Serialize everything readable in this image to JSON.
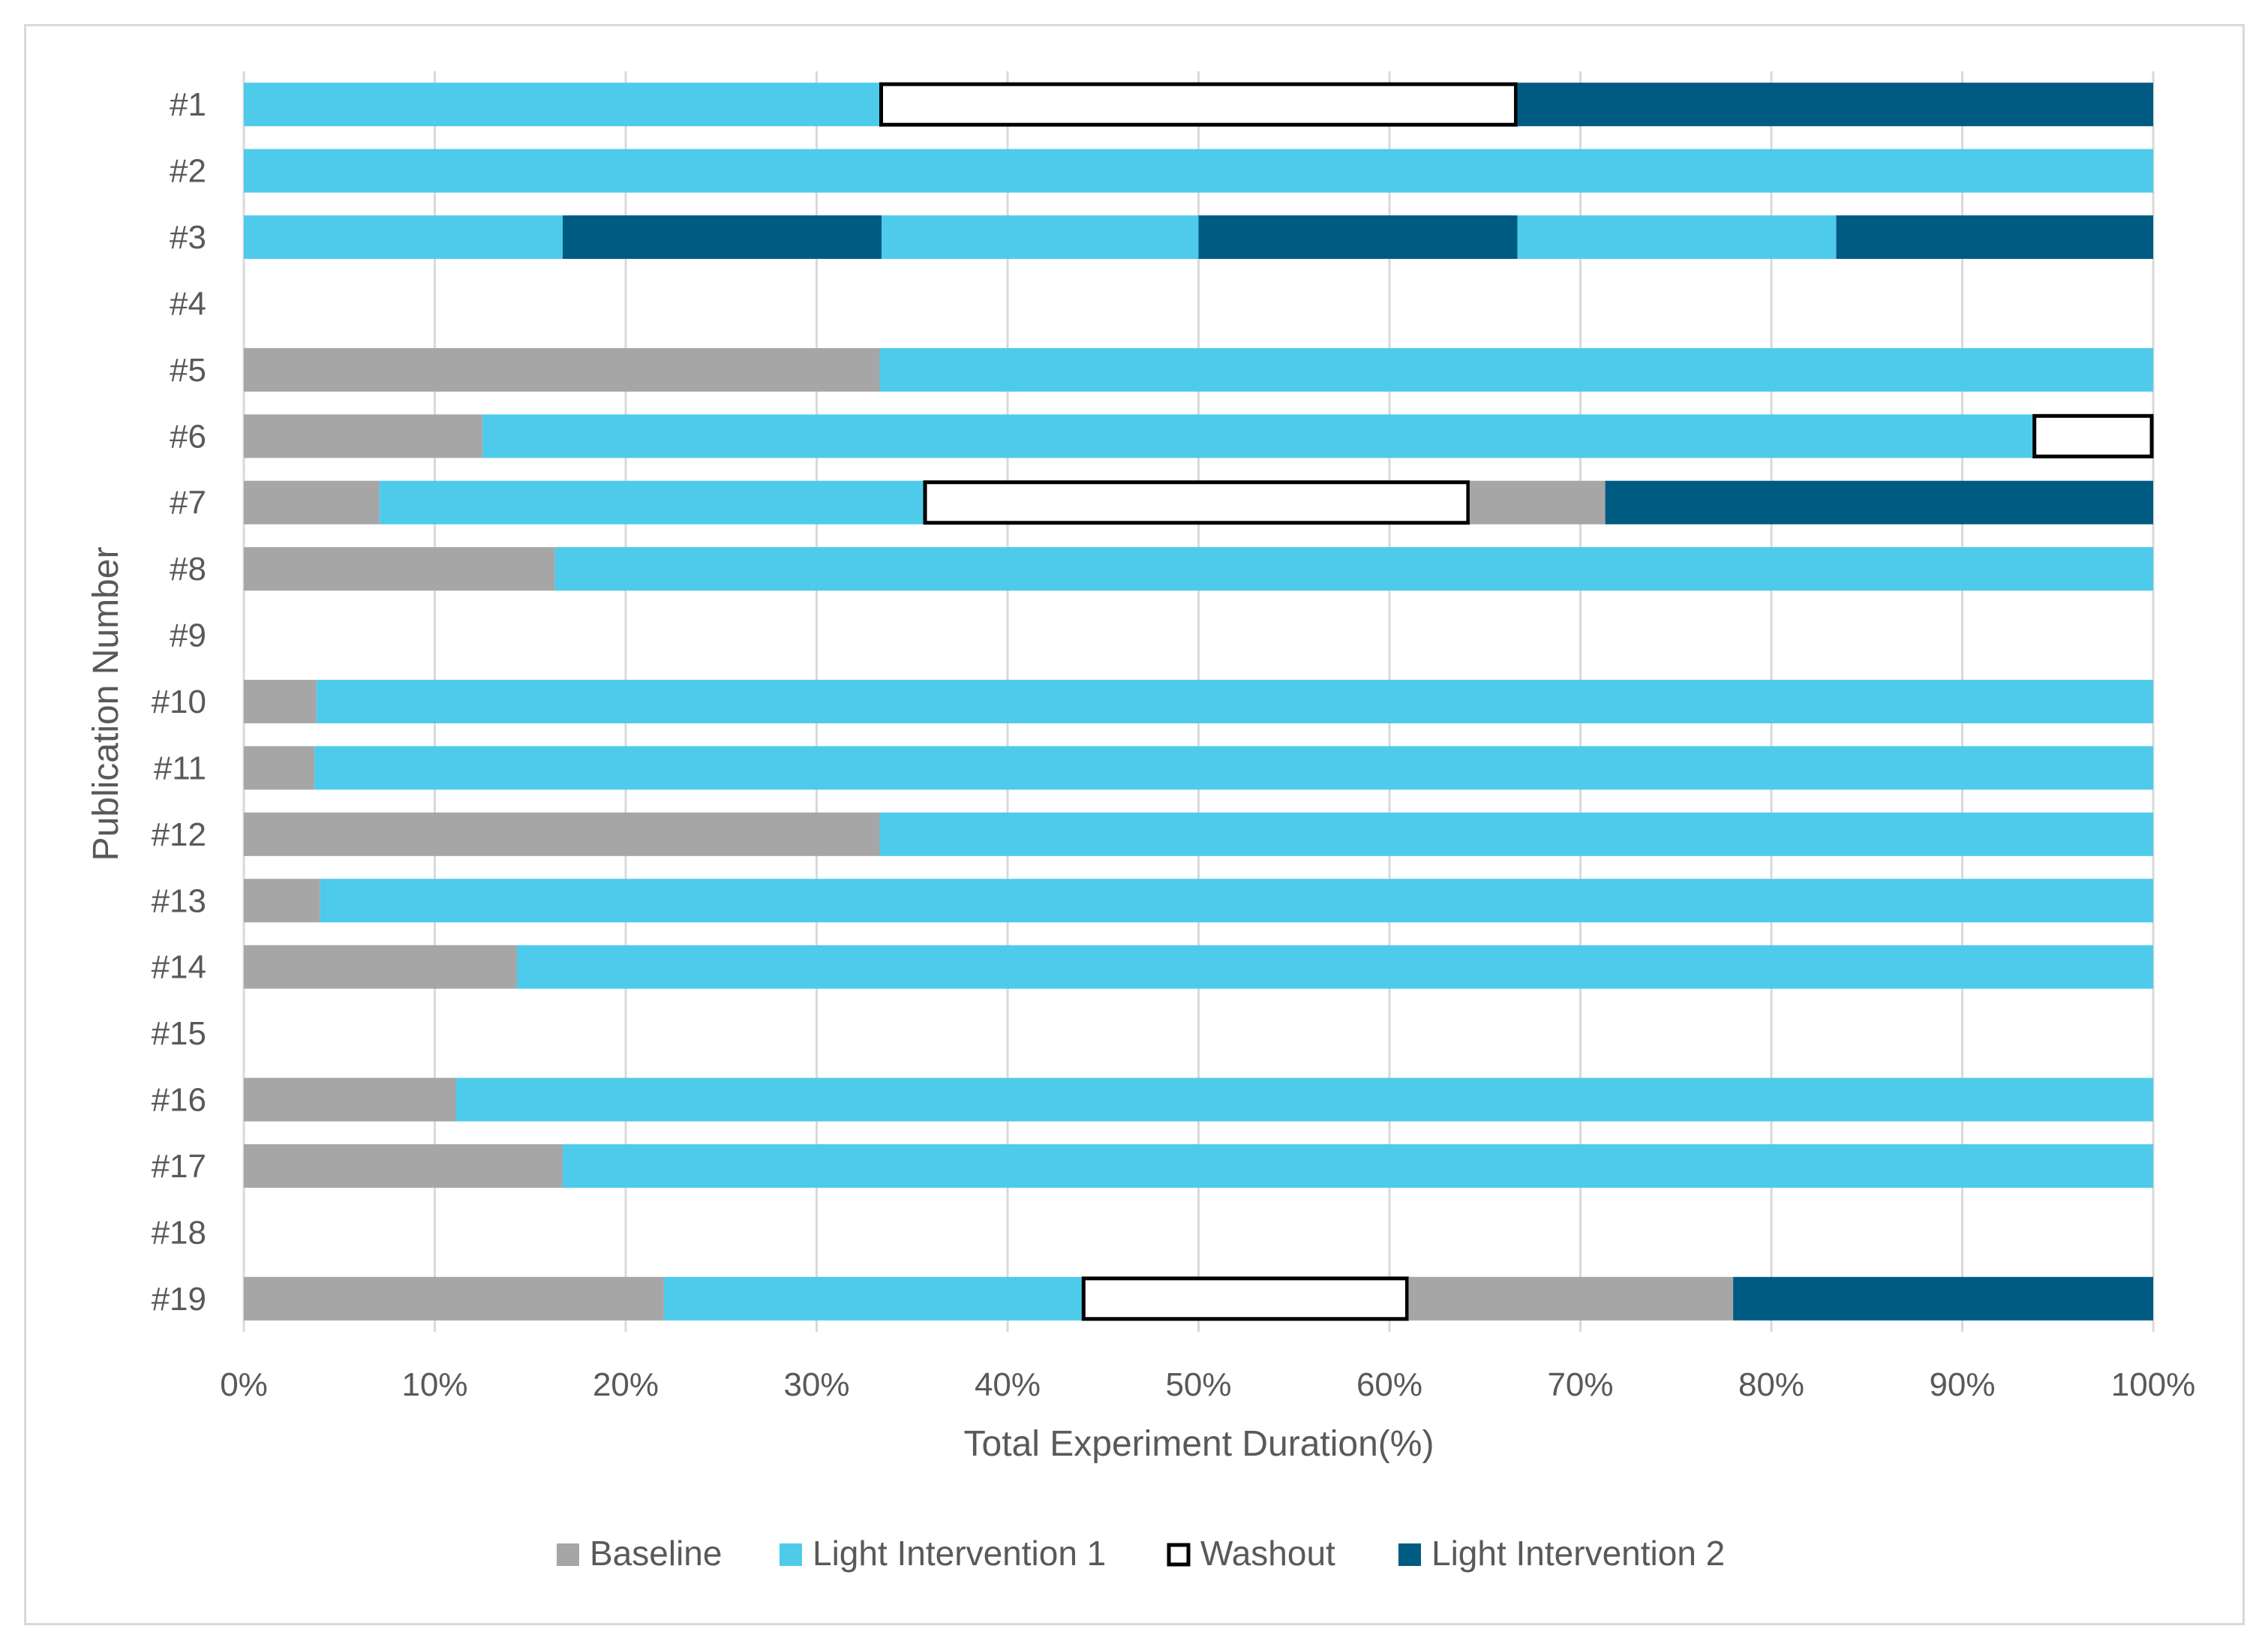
{
  "chart_data": {
    "type": "bar",
    "orientation": "horizontal",
    "stacked": true,
    "percent_stacked": true,
    "title": "",
    "xlabel": "Total Experiment Duration(%)",
    "ylabel": "Publication Number",
    "xlim": [
      0,
      100
    ],
    "x_ticks": [
      "0%",
      "10%",
      "20%",
      "30%",
      "40%",
      "50%",
      "60%",
      "70%",
      "80%",
      "90%",
      "100%"
    ],
    "grid": "vertical",
    "legend_position": "bottom",
    "categories": [
      "#1",
      "#2",
      "#3",
      "#4",
      "#5",
      "#6",
      "#7",
      "#8",
      "#9",
      "#10",
      "#11",
      "#12",
      "#13",
      "#14",
      "#15",
      "#16",
      "#17",
      "#18",
      "#19"
    ],
    "phase_types": [
      {
        "key": "baseline",
        "name": "Baseline",
        "color": "#a6a6a6",
        "outlined": false
      },
      {
        "key": "light1",
        "name": "Light Intervention 1",
        "color": "#4ecbeb",
        "outlined": false
      },
      {
        "key": "washout",
        "name": "Washout",
        "color": "#ffffff",
        "outlined": true
      },
      {
        "key": "light2",
        "name": "Light Intervention 2",
        "color": "#005b82",
        "outlined": false
      }
    ],
    "rows": [
      {
        "label": "#1",
        "segments": [
          {
            "type": "light1",
            "value": 33.3
          },
          {
            "type": "washout",
            "value": 33.4
          },
          {
            "type": "light2",
            "value": 33.3
          }
        ]
      },
      {
        "label": "#2",
        "segments": [
          {
            "type": "light1",
            "value": 100
          }
        ]
      },
      {
        "label": "#3",
        "segments": [
          {
            "type": "light1",
            "value": 16.7
          },
          {
            "type": "light2",
            "value": 16.7
          },
          {
            "type": "light1",
            "value": 16.6
          },
          {
            "type": "light2",
            "value": 16.7
          },
          {
            "type": "light1",
            "value": 16.7
          },
          {
            "type": "light2",
            "value": 16.6
          }
        ]
      },
      {
        "label": "#4",
        "segments": []
      },
      {
        "label": "#5",
        "segments": [
          {
            "type": "baseline",
            "value": 33.3
          },
          {
            "type": "light1",
            "value": 66.7
          }
        ]
      },
      {
        "label": "#6",
        "segments": [
          {
            "type": "baseline",
            "value": 12.5
          },
          {
            "type": "light1",
            "value": 81.2
          },
          {
            "type": "washout",
            "value": 6.3
          }
        ]
      },
      {
        "label": "#7",
        "segments": [
          {
            "type": "baseline",
            "value": 7.1
          },
          {
            "type": "light1",
            "value": 28.5
          },
          {
            "type": "washout",
            "value": 28.6
          },
          {
            "type": "baseline",
            "value": 7.1
          },
          {
            "type": "light2",
            "value": 28.7
          }
        ]
      },
      {
        "label": "#8",
        "segments": [
          {
            "type": "baseline",
            "value": 16.3
          },
          {
            "type": "light1",
            "value": 83.7
          }
        ]
      },
      {
        "label": "#9",
        "segments": []
      },
      {
        "label": "#10",
        "segments": [
          {
            "type": "baseline",
            "value": 3.8
          },
          {
            "type": "light1",
            "value": 96.2
          }
        ]
      },
      {
        "label": "#11",
        "segments": [
          {
            "type": "baseline",
            "value": 3.7
          },
          {
            "type": "light1",
            "value": 96.3
          }
        ]
      },
      {
        "label": "#12",
        "segments": [
          {
            "type": "baseline",
            "value": 33.3
          },
          {
            "type": "light1",
            "value": 66.7
          }
        ]
      },
      {
        "label": "#13",
        "segments": [
          {
            "type": "baseline",
            "value": 4.0
          },
          {
            "type": "light1",
            "value": 96.0
          }
        ]
      },
      {
        "label": "#14",
        "segments": [
          {
            "type": "baseline",
            "value": 14.3
          },
          {
            "type": "light1",
            "value": 85.7
          }
        ]
      },
      {
        "label": "#15",
        "segments": []
      },
      {
        "label": "#16",
        "segments": [
          {
            "type": "baseline",
            "value": 11.1
          },
          {
            "type": "light1",
            "value": 88.9
          }
        ]
      },
      {
        "label": "#17",
        "segments": [
          {
            "type": "baseline",
            "value": 16.7
          },
          {
            "type": "light1",
            "value": 83.3
          }
        ]
      },
      {
        "label": "#18",
        "segments": []
      },
      {
        "label": "#19",
        "segments": [
          {
            "type": "baseline",
            "value": 22.0
          },
          {
            "type": "light1",
            "value": 21.9
          },
          {
            "type": "washout",
            "value": 17.1
          },
          {
            "type": "baseline",
            "value": 17.0
          },
          {
            "type": "light2",
            "value": 22.0
          }
        ]
      }
    ]
  }
}
